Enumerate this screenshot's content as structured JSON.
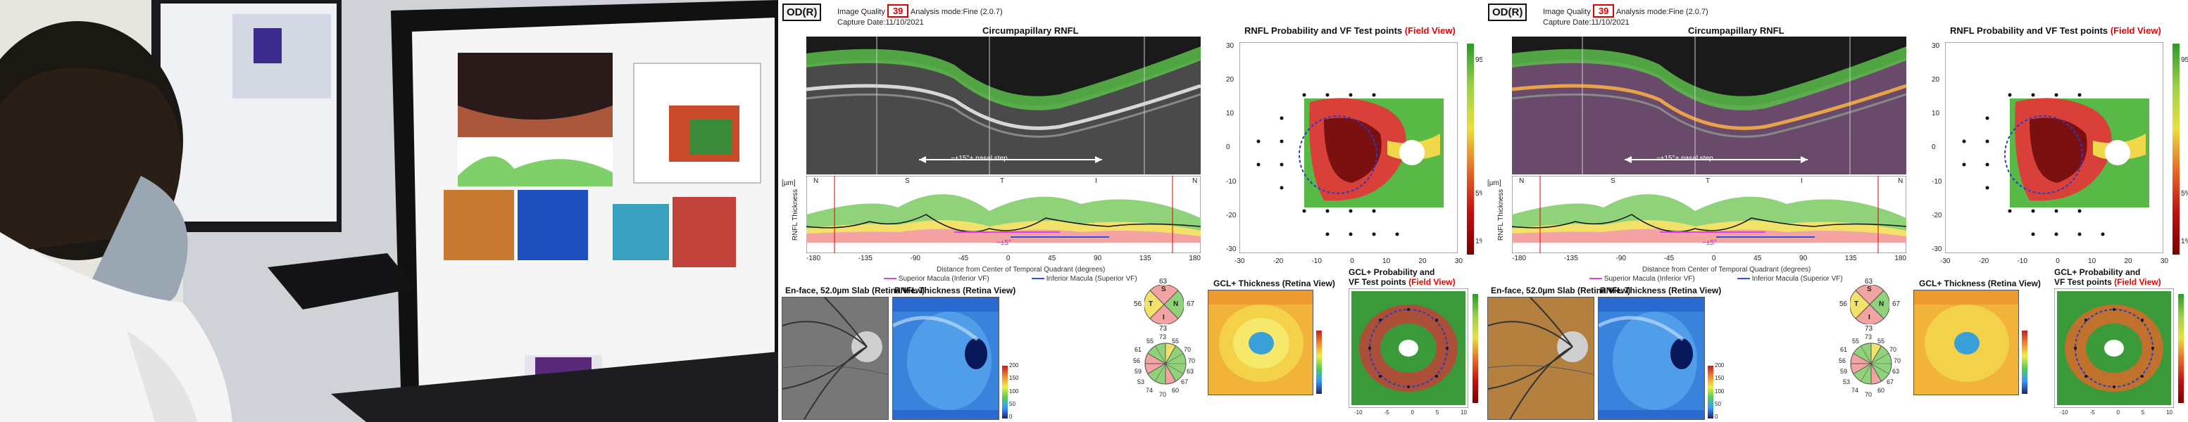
{
  "report": {
    "eye": "OD(R)",
    "image_quality_label": "Image Quality",
    "image_quality_value": "39",
    "analysis_mode": "Analysis mode:Fine (2.0.7)",
    "capture_date": "Capture Date:11/10/2021",
    "circumpapillary_title": "Circumpapillary RNFL",
    "prob_title_main": "RNFL Probability and VF Test points",
    "prob_title_red": "(Field View)",
    "step_label": "~±15°+ nasal step",
    "quadrants": [
      "N",
      "S",
      "T",
      "I",
      "N"
    ],
    "y_axis_label": "RNFL Thickness",
    "y_unit": "[µm]",
    "x_ticks": [
      "-180",
      "-135",
      "-90",
      "-45",
      "0",
      "45",
      "90",
      "135",
      "180"
    ],
    "x_axis_title": "Distance from Center of Temporal Quadrant (degrees)",
    "legend_sup": "Superior Macula (Inferior VF)",
    "legend_inf": "Inferior Macula (Superior VF)",
    "arrow_label": "~±5°",
    "prob_x_ticks": [
      "-30",
      "-20",
      "-10",
      "0",
      "10",
      "20",
      "30"
    ],
    "prob_y_ticks": [
      "30",
      "20",
      "10",
      "0",
      "-10",
      "-20",
      "-30"
    ],
    "colorbar_ticks": [
      "1%",
      "5%",
      "95%"
    ],
    "enface_title": "En-face, 52.0µm Slab (Retina View)",
    "rnfl_map_title": "RNFL Thickness (Retina View)",
    "gcl_title": "GCL+ Thickness (Retina View)",
    "gcl_prob_title_1": "GCL+ Probability and",
    "gcl_prob_title_2": "VF Test points",
    "gcl_prob_title_red": "(Field View)",
    "sector_labels": [
      "S",
      "T",
      "N",
      "I"
    ],
    "sector_values": [
      "63",
      "56",
      "67",
      "73"
    ],
    "clock_values": [
      "73",
      "55",
      "61",
      "70",
      "56",
      "55",
      "59",
      "70",
      "53",
      "63",
      "74",
      "67",
      "70",
      "60"
    ],
    "thickness_ticks": [
      "200",
      "150",
      "100",
      "50",
      "0"
    ],
    "gcl_ticks": [
      "10",
      "5",
      "0",
      "-5",
      "-10"
    ]
  },
  "colors": {
    "quality_red": "#dd0000",
    "normal_green": "#6ec64a",
    "borderline_yellow": "#f1e05a",
    "abnormal_red": "#e8484a",
    "sup_magenta": "#e040e0",
    "inf_blue": "#3050e0"
  }
}
